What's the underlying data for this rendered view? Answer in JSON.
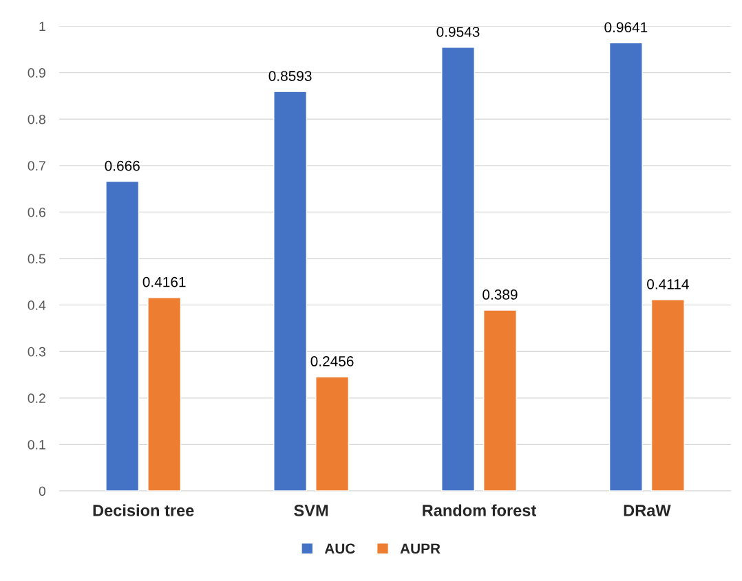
{
  "chart_data": {
    "type": "bar",
    "categories": [
      "Decision tree",
      "SVM",
      "Random forest",
      "DRaW"
    ],
    "series": [
      {
        "name": "AUC",
        "color": "#4472c4",
        "values": [
          0.666,
          0.8593,
          0.9543,
          0.9641
        ]
      },
      {
        "name": "AUPR",
        "color": "#ed7d31",
        "values": [
          0.4161,
          0.2456,
          0.389,
          0.4114
        ]
      }
    ],
    "ylim": [
      0,
      1
    ],
    "yticks": [
      0,
      0.1,
      0.2,
      0.3,
      0.4,
      0.5,
      0.6,
      0.7,
      0.8,
      0.9,
      1
    ],
    "grid": "y",
    "legend": "bottom",
    "data_labels": true
  }
}
